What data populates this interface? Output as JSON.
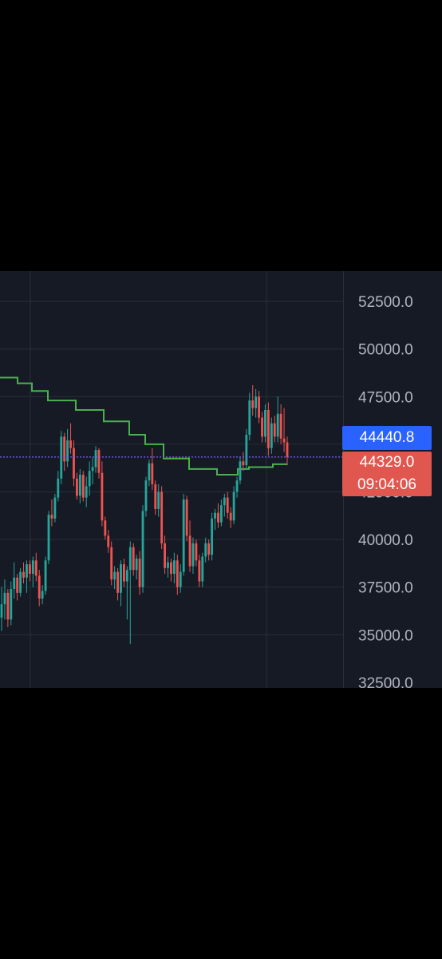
{
  "colors": {
    "page_background": "#000000",
    "chart_background": "#161a25",
    "grid": "#2a2e39",
    "up_candle": "#26a69a",
    "down_candle": "#ef5350",
    "indicator_line": "#4caf50",
    "price_line": "#7b61ff",
    "last_price_tag": "#2962ff",
    "current_price_tag": "#e0574f",
    "axis_text": "#b2b5be"
  },
  "price_scale": {
    "labels": [
      "52500.0",
      "50000.0",
      "47500.0",
      "42500.0",
      "40000.0",
      "37500.0",
      "35000.0",
      "32500.0"
    ]
  },
  "tags": {
    "last_price": "44440.8",
    "current_price": "44329.0",
    "countdown": "09:04:06"
  },
  "chart_data": {
    "type": "candlestick",
    "ylim": [
      32200,
      54100
    ],
    "grid": true,
    "price_line": 44329.0,
    "candles": [
      [
        35900,
        37500,
        35200,
        36600
      ],
      [
        36600,
        37900,
        35800,
        37200
      ],
      [
        37200,
        37400,
        35400,
        35800
      ],
      [
        35800,
        37800,
        35500,
        37400
      ],
      [
        37400,
        38800,
        36900,
        38000
      ],
      [
        38000,
        38200,
        36800,
        37200
      ],
      [
        37200,
        38500,
        37000,
        38300
      ],
      [
        38300,
        38800,
        37700,
        38000
      ],
      [
        38000,
        38900,
        37200,
        38700
      ],
      [
        38700,
        38900,
        37800,
        38200
      ],
      [
        38200,
        39100,
        37500,
        38900
      ],
      [
        38900,
        39300,
        37800,
        38100
      ],
      [
        38100,
        38400,
        36500,
        36900
      ],
      [
        36900,
        37600,
        36600,
        37300
      ],
      [
        37300,
        39100,
        37100,
        38900
      ],
      [
        38900,
        41500,
        38700,
        41300
      ],
      [
        41300,
        42100,
        40700,
        41100
      ],
      [
        41100,
        42400,
        40900,
        42200
      ],
      [
        42200,
        43600,
        42000,
        43200
      ],
      [
        43200,
        45700,
        42900,
        45400
      ],
      [
        45400,
        45600,
        43600,
        44100
      ],
      [
        44100,
        45800,
        43800,
        45200
      ],
      [
        45200,
        46100,
        44500,
        44800
      ],
      [
        44800,
        45200,
        42800,
        43200
      ],
      [
        43200,
        43500,
        42100,
        42300
      ],
      [
        42300,
        43700,
        41900,
        43400
      ],
      [
        43400,
        43600,
        42000,
        42200
      ],
      [
        42200,
        43300,
        41700,
        42800
      ],
      [
        42800,
        44100,
        42300,
        43600
      ],
      [
        43600,
        44300,
        42900,
        43800
      ],
      [
        43800,
        44900,
        43500,
        44700
      ],
      [
        44700,
        44800,
        43200,
        43500
      ],
      [
        43500,
        44100,
        40700,
        41000
      ],
      [
        41000,
        41200,
        40000,
        40200
      ],
      [
        40200,
        40500,
        39300,
        39600
      ],
      [
        39600,
        39900,
        37600,
        37900
      ],
      [
        37900,
        38600,
        37400,
        38300
      ],
      [
        38300,
        38500,
        36800,
        37200
      ],
      [
        37200,
        38900,
        36500,
        38700
      ],
      [
        38700,
        39000,
        37500,
        37800
      ],
      [
        37800,
        38600,
        35800,
        38400
      ],
      [
        38400,
        39900,
        34500,
        39600
      ],
      [
        39600,
        39800,
        38100,
        38400
      ],
      [
        38400,
        39200,
        37900,
        39000
      ],
      [
        39000,
        39400,
        37100,
        37500
      ],
      [
        37500,
        41800,
        37200,
        41500
      ],
      [
        41500,
        43300,
        41200,
        43100
      ],
      [
        43100,
        44200,
        42800,
        44000
      ],
      [
        44000,
        44800,
        42600,
        42900
      ],
      [
        42900,
        43100,
        41300,
        41600
      ],
      [
        41600,
        42900,
        41200,
        42500
      ],
      [
        42500,
        42800,
        39500,
        39800
      ],
      [
        39800,
        40200,
        38200,
        38500
      ],
      [
        38500,
        39100,
        38000,
        38800
      ],
      [
        38800,
        39000,
        37800,
        38200
      ],
      [
        38200,
        39300,
        37700,
        38900
      ],
      [
        38900,
        39200,
        37100,
        37500
      ],
      [
        37500,
        38700,
        37200,
        38300
      ],
      [
        38300,
        42400,
        38100,
        42100
      ],
      [
        42100,
        42300,
        39900,
        40200
      ],
      [
        40200,
        41000,
        38300,
        38600
      ],
      [
        38600,
        40100,
        38200,
        39800
      ],
      [
        39800,
        40000,
        38600,
        38900
      ],
      [
        38900,
        39200,
        37500,
        37800
      ],
      [
        37800,
        39300,
        37500,
        39100
      ],
      [
        39100,
        40100,
        38800,
        39800
      ],
      [
        39800,
        40000,
        38900,
        39200
      ],
      [
        39200,
        41400,
        38900,
        41100
      ],
      [
        41100,
        41600,
        40500,
        41400
      ],
      [
        41400,
        41900,
        40600,
        40900
      ],
      [
        40900,
        42100,
        40700,
        41800
      ],
      [
        41800,
        42400,
        41200,
        42200
      ],
      [
        42200,
        42500,
        41100,
        41400
      ],
      [
        41400,
        41700,
        40600,
        41000
      ],
      [
        41000,
        42800,
        40800,
        42500
      ],
      [
        42500,
        43300,
        42200,
        43100
      ],
      [
        43100,
        44300,
        42900,
        44100
      ],
      [
        44100,
        44600,
        43600,
        43900
      ],
      [
        43900,
        45800,
        43700,
        45500
      ],
      [
        45500,
        47700,
        45200,
        47300
      ],
      [
        47300,
        48100,
        46500,
        46900
      ],
      [
        46900,
        47900,
        46400,
        47500
      ],
      [
        47500,
        47800,
        46100,
        46400
      ],
      [
        46400,
        46700,
        45100,
        45400
      ],
      [
        45400,
        47100,
        45100,
        46800
      ],
      [
        46800,
        47200,
        44400,
        44800
      ],
      [
        44800,
        46400,
        44500,
        46100
      ],
      [
        46100,
        46500,
        45100,
        45400
      ],
      [
        45400,
        47500,
        45100,
        46600
      ],
      [
        46600,
        47100,
        45000,
        45300
      ],
      [
        45300,
        46900,
        44600,
        45100
      ],
      [
        45100,
        45400,
        43900,
        44329
      ]
    ],
    "indicator": [
      [
        0,
        48500
      ],
      [
        22,
        48500
      ],
      [
        22,
        48200
      ],
      [
        40,
        48200
      ],
      [
        40,
        47800
      ],
      [
        60,
        47800
      ],
      [
        60,
        47300
      ],
      [
        95,
        47300
      ],
      [
        95,
        46800
      ],
      [
        130,
        46800
      ],
      [
        130,
        46200
      ],
      [
        162,
        46200
      ],
      [
        162,
        45500
      ],
      [
        182,
        45500
      ],
      [
        182,
        45000
      ],
      [
        205,
        45000
      ],
      [
        205,
        44250
      ],
      [
        237,
        44250
      ],
      [
        237,
        43700
      ],
      [
        272,
        43700
      ],
      [
        272,
        43400
      ],
      [
        298,
        43400
      ],
      [
        298,
        43700
      ],
      [
        312,
        43700
      ],
      [
        312,
        43800
      ],
      [
        342,
        43800
      ],
      [
        342,
        43950
      ],
      [
        360,
        43950
      ]
    ]
  }
}
